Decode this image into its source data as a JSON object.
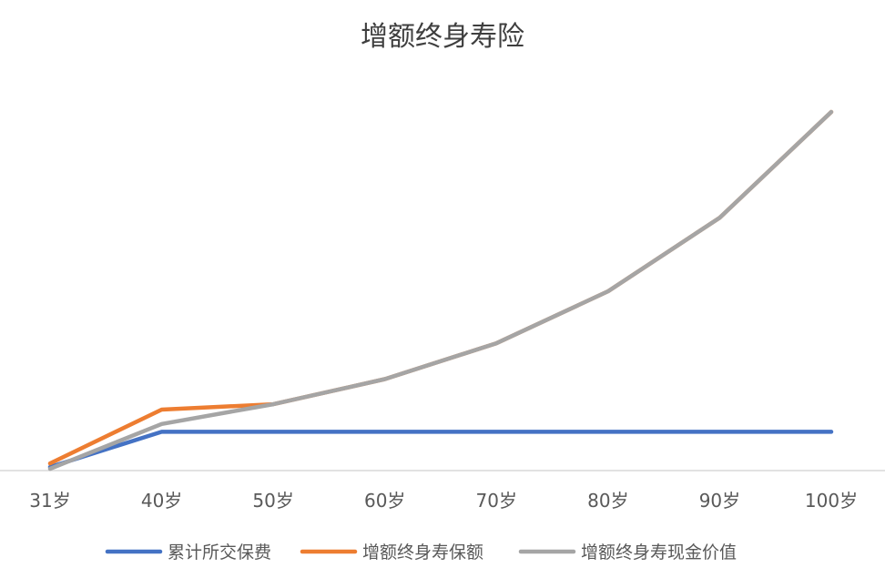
{
  "chart_data": {
    "type": "line",
    "title": "增额终身寿险",
    "xlabel": "",
    "ylabel": "",
    "grid": false,
    "legend_position": "bottom",
    "categories": [
      "31岁",
      "40岁",
      "50岁",
      "60岁",
      "70岁",
      "80岁",
      "90岁",
      "100岁"
    ],
    "ylim": [
      0,
      100
    ],
    "series": [
      {
        "name": "累计所交保费",
        "color": "#4472c4",
        "values": [
          1,
          10.8,
          10.8,
          10.8,
          10.8,
          10.8,
          10.8,
          10.8
        ]
      },
      {
        "name": "增额终身寿保额",
        "color": "#ed7d31",
        "values": [
          2,
          17,
          18.5,
          25.5,
          35.5,
          50,
          70.5,
          100
        ]
      },
      {
        "name": "增额终身寿现金价值",
        "color": "#a5a5a5",
        "values": [
          0.5,
          13,
          18.5,
          25.5,
          35.5,
          50,
          70.5,
          100
        ]
      }
    ]
  }
}
